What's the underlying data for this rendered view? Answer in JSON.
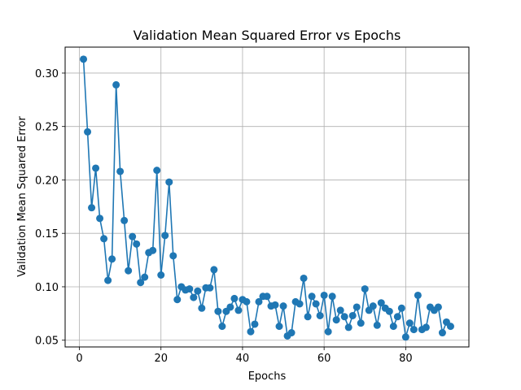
{
  "chart_data": {
    "type": "line",
    "title": "Validation Mean Squared Error vs Epochs",
    "xlabel": "Epochs",
    "ylabel": "Validation Mean Squared Error",
    "xlim": [
      -3.5,
      95.5
    ],
    "ylim": [
      0.0437,
      0.3243
    ],
    "xticks": [
      0,
      20,
      40,
      60,
      80
    ],
    "xtick_labels": [
      "0",
      "20",
      "40",
      "60",
      "80"
    ],
    "yticks": [
      0.05,
      0.1,
      0.15,
      0.2,
      0.25,
      0.3
    ],
    "ytick_labels": [
      "0.05",
      "0.10",
      "0.15",
      "0.20",
      "0.25",
      "0.30"
    ],
    "grid": true,
    "markers": true,
    "colors": {
      "series": "#1f77b4",
      "grid": "#b0b0b0",
      "axis": "#000000"
    },
    "series": [
      {
        "x": [
          1,
          2,
          3,
          4,
          5,
          6,
          7,
          8,
          9,
          10,
          11,
          12,
          13,
          14,
          15,
          16,
          17,
          18,
          19,
          20,
          21,
          22,
          23,
          24,
          25,
          26,
          27,
          28,
          29,
          30,
          31,
          32,
          33,
          34,
          35,
          36,
          37,
          38,
          39,
          40,
          41,
          42,
          43,
          44,
          45,
          46,
          47,
          48,
          49,
          50,
          51,
          52,
          53,
          54,
          55,
          56,
          57,
          58,
          59,
          60,
          61,
          62,
          63,
          64,
          65,
          66,
          67,
          68,
          69,
          70,
          71,
          72,
          73,
          74,
          75,
          76,
          77,
          78,
          79,
          80,
          81,
          82,
          83,
          84,
          85,
          86,
          87,
          88,
          89,
          90,
          91
        ],
        "values": [
          0.313,
          0.245,
          0.174,
          0.211,
          0.164,
          0.145,
          0.106,
          0.126,
          0.289,
          0.208,
          0.162,
          0.115,
          0.147,
          0.14,
          0.104,
          0.109,
          0.132,
          0.134,
          0.209,
          0.111,
          0.148,
          0.198,
          0.129,
          0.088,
          0.1,
          0.097,
          0.098,
          0.09,
          0.096,
          0.08,
          0.099,
          0.099,
          0.116,
          0.077,
          0.063,
          0.077,
          0.081,
          0.089,
          0.078,
          0.088,
          0.086,
          0.058,
          0.065,
          0.086,
          0.091,
          0.091,
          0.082,
          0.083,
          0.063,
          0.082,
          0.054,
          0.057,
          0.086,
          0.084,
          0.108,
          0.072,
          0.091,
          0.084,
          0.073,
          0.092,
          0.058,
          0.091,
          0.069,
          0.078,
          0.072,
          0.062,
          0.073,
          0.081,
          0.066,
          0.098,
          0.078,
          0.082,
          0.064,
          0.085,
          0.08,
          0.077,
          0.063,
          0.072,
          0.08,
          0.053,
          0.066,
          0.06,
          0.092,
          0.06,
          0.062,
          0.081,
          0.078,
          0.081,
          0.057,
          0.067,
          0.063
        ]
      }
    ]
  }
}
